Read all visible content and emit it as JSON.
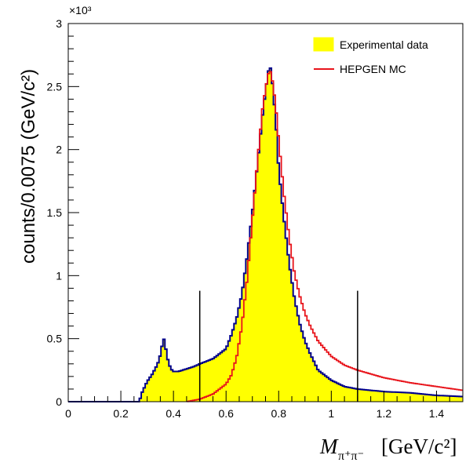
{
  "chart_data": {
    "type": "area",
    "xlabel_main": "M",
    "xlabel_sub": "π⁺π⁻",
    "xlabel_unit": "[GeV/c²]",
    "ylabel": "counts/0.0075 (GeV/c²)",
    "y_exponent_label": "×10³",
    "xlim": [
      0,
      1.5
    ],
    "ylim": [
      0,
      3
    ],
    "x_ticks": [
      0,
      0.2,
      0.4,
      0.6,
      0.8,
      1,
      1.2,
      1.4
    ],
    "x_tick_labels": [
      "0",
      "0.2",
      "0.4",
      "0.6",
      "0.8",
      "1",
      "1.2",
      "1.4"
    ],
    "y_ticks": [
      0,
      0.5,
      1,
      1.5,
      2,
      2.5,
      3
    ],
    "y_tick_labels": [
      "0",
      "0.5",
      "1",
      "1.5",
      "2",
      "2.5",
      "3"
    ],
    "legend_position": "top-right",
    "cut_lines_x": [
      0.5,
      1.1
    ],
    "cut_line_height": 0.88,
    "series": [
      {
        "name": "Experimental data",
        "kind": "filled-histogram",
        "fill_color": "#ffff00",
        "line_color": "#00008b",
        "x": [
          0.0,
          0.2,
          0.27,
          0.28,
          0.3,
          0.32,
          0.34,
          0.35,
          0.36,
          0.365,
          0.37,
          0.38,
          0.39,
          0.4,
          0.42,
          0.45,
          0.48,
          0.5,
          0.55,
          0.6,
          0.62,
          0.64,
          0.66,
          0.68,
          0.7,
          0.72,
          0.74,
          0.76,
          0.77,
          0.78,
          0.79,
          0.8,
          0.82,
          0.84,
          0.86,
          0.88,
          0.9,
          0.92,
          0.95,
          1.0,
          1.05,
          1.1,
          1.2,
          1.3,
          1.4,
          1.5
        ],
        "y": [
          0.0,
          0.0,
          0.0,
          0.07,
          0.16,
          0.22,
          0.3,
          0.37,
          0.48,
          0.5,
          0.43,
          0.32,
          0.26,
          0.24,
          0.24,
          0.26,
          0.28,
          0.3,
          0.34,
          0.42,
          0.53,
          0.66,
          0.85,
          1.15,
          1.5,
          1.9,
          2.3,
          2.62,
          2.65,
          2.45,
          2.2,
          1.85,
          1.45,
          1.1,
          0.82,
          0.62,
          0.48,
          0.38,
          0.25,
          0.17,
          0.12,
          0.1,
          0.08,
          0.07,
          0.05,
          0.04
        ]
      },
      {
        "name": "HEPGEN MC",
        "kind": "line-histogram",
        "line_color": "#e8141b",
        "x": [
          0.45,
          0.5,
          0.55,
          0.6,
          0.62,
          0.64,
          0.66,
          0.68,
          0.7,
          0.72,
          0.74,
          0.76,
          0.77,
          0.78,
          0.79,
          0.8,
          0.82,
          0.84,
          0.86,
          0.88,
          0.9,
          0.92,
          0.95,
          1.0,
          1.05,
          1.1,
          1.2,
          1.3,
          1.4,
          1.5
        ],
        "y": [
          0.0,
          0.02,
          0.06,
          0.14,
          0.21,
          0.35,
          0.6,
          0.97,
          1.45,
          1.92,
          2.35,
          2.6,
          2.62,
          2.5,
          2.32,
          2.08,
          1.65,
          1.3,
          1.02,
          0.84,
          0.7,
          0.6,
          0.48,
          0.36,
          0.29,
          0.25,
          0.19,
          0.15,
          0.12,
          0.09
        ]
      }
    ]
  }
}
